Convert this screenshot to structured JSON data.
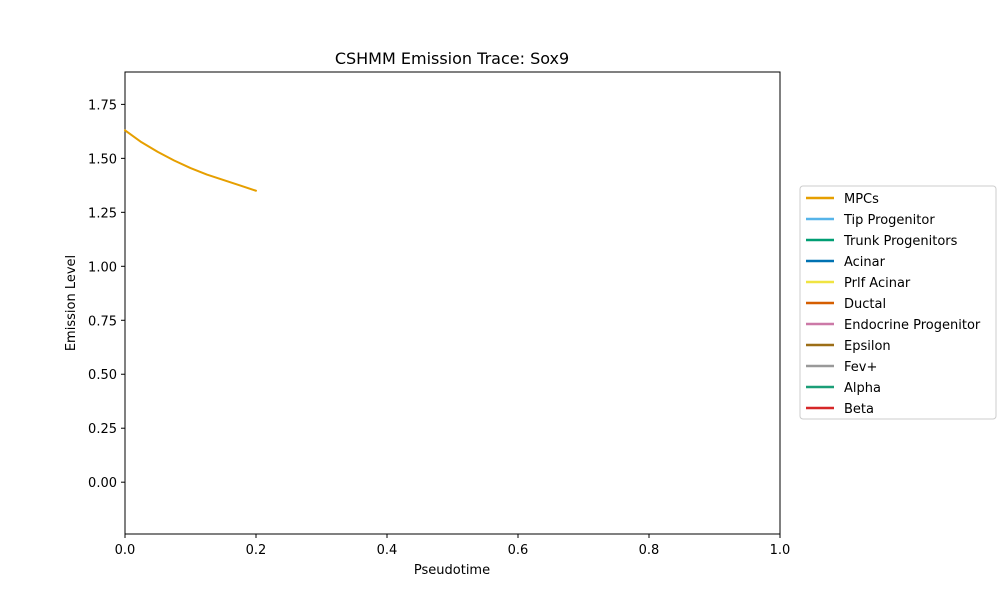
{
  "chart_data": {
    "type": "line",
    "title": "CSHMM Emission Trace: Sox9",
    "xlabel": "Pseudotime",
    "ylabel": "Emission Level",
    "xlim": [
      0.0,
      1.0
    ],
    "ylim": [
      -0.24,
      1.9
    ],
    "xticks": [
      0.0,
      0.2,
      0.4,
      0.6,
      0.8,
      1.0
    ],
    "xtick_labels": [
      "0.0",
      "0.2",
      "0.4",
      "0.6",
      "0.8",
      "1.0"
    ],
    "yticks": [
      0.0,
      0.25,
      0.5,
      0.75,
      1.0,
      1.25,
      1.5,
      1.75
    ],
    "ytick_labels": [
      "0.00",
      "0.25",
      "0.50",
      "0.75",
      "1.00",
      "1.25",
      "1.50",
      "1.75"
    ],
    "grid": false,
    "legend_position": "center-right outside",
    "series": [
      {
        "name": "MPCs",
        "color": "#E69F00",
        "x": [
          0.0,
          0.025,
          0.05,
          0.075,
          0.1,
          0.125,
          0.15,
          0.175,
          0.2
        ],
        "y": [
          1.63,
          1.575,
          1.53,
          1.49,
          1.455,
          1.425,
          1.4,
          1.375,
          1.35
        ]
      },
      {
        "name": "Tip Progenitor",
        "color": "#56B4E9",
        "x": [],
        "y": []
      },
      {
        "name": "Trunk Progenitors",
        "color": "#009E73",
        "x": [],
        "y": []
      },
      {
        "name": "Acinar",
        "color": "#0072B2",
        "x": [],
        "y": []
      },
      {
        "name": "Prlf Acinar",
        "color": "#F0E442",
        "x": [],
        "y": []
      },
      {
        "name": "Ductal",
        "color": "#D55E00",
        "x": [],
        "y": []
      },
      {
        "name": "Endocrine Progenitor",
        "color": "#CC79A7",
        "x": [],
        "y": []
      },
      {
        "name": "Epsilon",
        "color": "#9C6E17",
        "x": [],
        "y": []
      },
      {
        "name": "Fev+",
        "color": "#999999",
        "x": [],
        "y": []
      },
      {
        "name": "Alpha",
        "color": "#1A9E77",
        "x": [],
        "y": []
      },
      {
        "name": "Beta",
        "color": "#D62728",
        "x": [],
        "y": []
      }
    ]
  }
}
